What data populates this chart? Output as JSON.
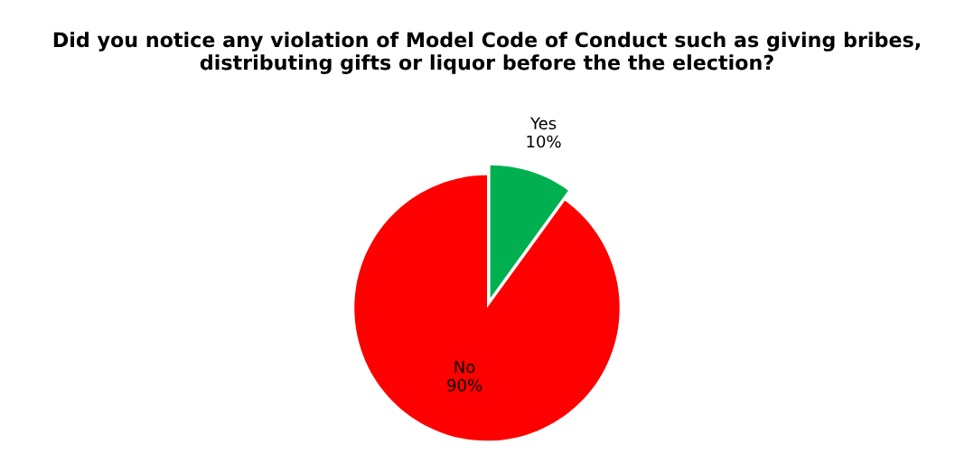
{
  "chart_data": {
    "type": "pie",
    "title": "Did you notice any violation of Model Code of Conduct such as giving bribes, distributing gifts or liquor before the the election?",
    "categories": [
      "Yes",
      "No"
    ],
    "values": [
      10,
      90
    ],
    "value_labels": [
      "10%",
      "90%"
    ],
    "colors": [
      "#00b050",
      "#ff0000"
    ],
    "legend": false
  }
}
